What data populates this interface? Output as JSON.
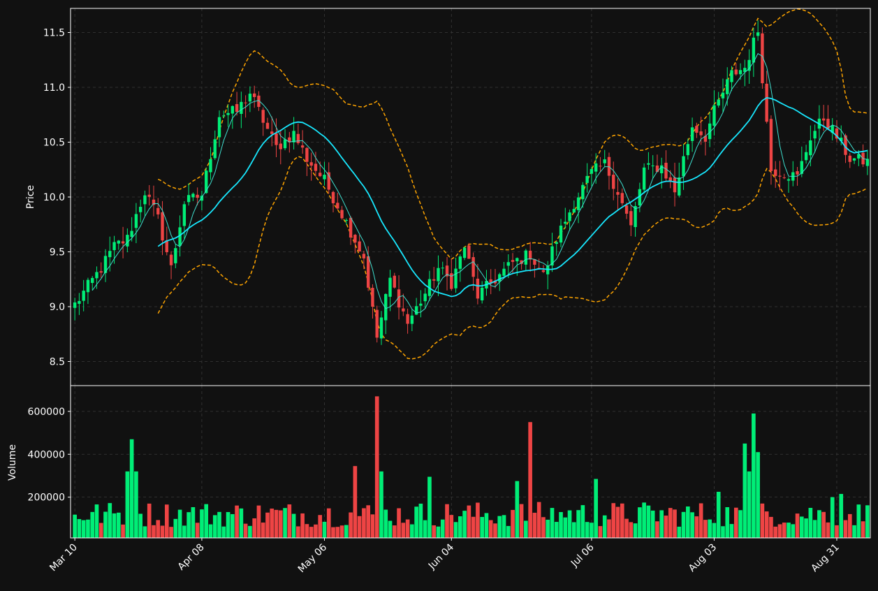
{
  "colors": {
    "background": "#111111",
    "grid": "#3a3a3a",
    "axis": "#ffffff",
    "text": "#ffffff",
    "up": "#00ee77",
    "down": "#ee4444",
    "ma_short": "#3fe0d0",
    "ma_long": "#18e8ff",
    "bollinger": "#ffa500"
  },
  "chart_data": {
    "type": "candlestick",
    "title": "",
    "price_panel": {
      "ylabel": "Price",
      "ylim": [
        8.28,
        11.72
      ],
      "yticks": [
        8.5,
        9.0,
        9.5,
        10.0,
        10.5,
        11.0,
        11.5
      ],
      "ytick_labels": [
        "8.5",
        "9.0",
        "9.5",
        "10.0",
        "10.5",
        "11.0",
        "11.5"
      ],
      "grid": true
    },
    "volume_panel": {
      "ylabel": "Volume",
      "ylim": [
        10000,
        720000
      ],
      "yticks": [
        200000,
        400000,
        600000
      ],
      "ytick_labels": [
        "200000",
        "400000",
        "600000"
      ],
      "grid": true
    },
    "x_axis": {
      "dates_range": [
        "2024-03-10",
        "2024-09-07"
      ],
      "tick_dates": [
        "2024-03-10",
        "2024-04-08",
        "2024-05-06",
        "2024-06-04",
        "2024-07-06",
        "2024-08-03",
        "2024-08-31"
      ],
      "tick_labels": [
        "Mar 10",
        "Apr 08",
        "May 06",
        "Jun 04",
        "Jul 06",
        "Aug 03",
        "Aug 31"
      ],
      "tick_rotation": 45
    },
    "anchors": {
      "close": [
        [
          "2024-03-10",
          9.02
        ],
        [
          "2024-03-16",
          9.35
        ],
        [
          "2024-03-19",
          9.55
        ],
        [
          "2024-03-22",
          9.62
        ],
        [
          "2024-03-26",
          10.05
        ],
        [
          "2024-03-29",
          9.8
        ],
        [
          "2024-04-01",
          9.35
        ],
        [
          "2024-04-04",
          9.95
        ],
        [
          "2024-04-08",
          10.02
        ],
        [
          "2024-04-12",
          10.75
        ],
        [
          "2024-04-16",
          10.78
        ],
        [
          "2024-04-19",
          10.95
        ],
        [
          "2024-04-22",
          10.7
        ],
        [
          "2024-04-25",
          10.45
        ],
        [
          "2024-04-29",
          10.58
        ],
        [
          "2024-05-02",
          10.35
        ],
        [
          "2024-05-06",
          10.15
        ],
        [
          "2024-05-10",
          9.85
        ],
        [
          "2024-05-15",
          9.45
        ],
        [
          "2024-05-18",
          8.72
        ],
        [
          "2024-05-21",
          9.25
        ],
        [
          "2024-05-25",
          8.85
        ],
        [
          "2024-05-29",
          9.12
        ],
        [
          "2024-06-01",
          9.35
        ],
        [
          "2024-06-04",
          9.22
        ],
        [
          "2024-06-07",
          9.55
        ],
        [
          "2024-06-10",
          9.1
        ],
        [
          "2024-06-14",
          9.25
        ],
        [
          "2024-06-18",
          9.4
        ],
        [
          "2024-06-22",
          9.48
        ],
        [
          "2024-06-25",
          9.28
        ],
        [
          "2024-06-28",
          9.62
        ],
        [
          "2024-07-02",
          9.95
        ],
        [
          "2024-07-06",
          10.22
        ],
        [
          "2024-07-09",
          10.3
        ],
        [
          "2024-07-12",
          10.05
        ],
        [
          "2024-07-15",
          9.72
        ],
        [
          "2024-07-18",
          10.25
        ],
        [
          "2024-07-22",
          10.28
        ],
        [
          "2024-07-25",
          10.05
        ],
        [
          "2024-07-29",
          10.65
        ],
        [
          "2024-08-01",
          10.55
        ],
        [
          "2024-08-03",
          10.78
        ],
        [
          "2024-08-07",
          11.12
        ],
        [
          "2024-08-10",
          11.18
        ],
        [
          "2024-08-13",
          11.52
        ],
        [
          "2024-08-16",
          10.25
        ],
        [
          "2024-08-19",
          10.22
        ],
        [
          "2024-08-22",
          10.18
        ],
        [
          "2024-08-25",
          10.55
        ],
        [
          "2024-08-28",
          10.72
        ],
        [
          "2024-08-31",
          10.55
        ],
        [
          "2024-09-03",
          10.35
        ],
        [
          "2024-09-07",
          10.32
        ]
      ],
      "volume_spikes": [
        [
          "2024-03-23",
          470000
        ],
        [
          "2024-03-24",
          320000
        ],
        [
          "2024-03-22",
          320000
        ],
        [
          "2024-05-13",
          345000
        ],
        [
          "2024-05-18",
          670000
        ],
        [
          "2024-05-19",
          320000
        ],
        [
          "2024-05-30",
          295000
        ],
        [
          "2024-06-19",
          275000
        ],
        [
          "2024-06-22",
          550000
        ],
        [
          "2024-07-07",
          285000
        ],
        [
          "2024-08-10",
          450000
        ],
        [
          "2024-08-11",
          320000
        ],
        [
          "2024-08-12",
          590000
        ],
        [
          "2024-08-13",
          410000
        ],
        [
          "2024-08-04",
          225000
        ],
        [
          "2024-08-30",
          200000
        ],
        [
          "2024-09-01",
          215000
        ]
      ]
    },
    "series": [
      {
        "style": "candles"
      },
      {
        "style": "moving-average",
        "window": 5
      },
      {
        "style": "moving-average",
        "window": 20
      },
      {
        "style": "bollinger",
        "window": 20,
        "k": 2
      },
      {
        "style": "volume-bars"
      }
    ]
  }
}
